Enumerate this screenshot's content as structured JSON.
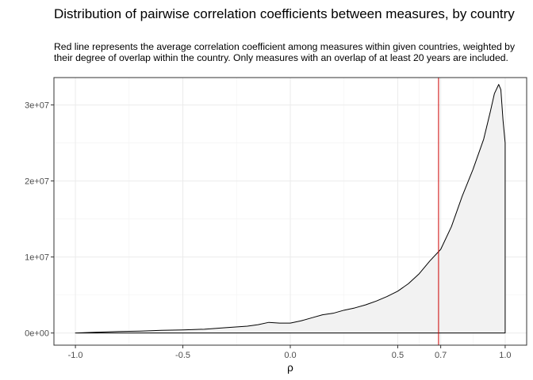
{
  "chart_data": {
    "type": "area",
    "title": "Distribution of pairwise correlation coefficients between measures, by country",
    "subtitle": "Red line represents the average correlation coefficient among measures within given countries, weighted by their degree of overlap within the country. Only measures with an overlap of at least 20 years are included.",
    "xlabel": "ρ",
    "ylabel": "",
    "xlim": [
      -1.1,
      1.1
    ],
    "ylim": [
      -1600000,
      33600000
    ],
    "x_ticks": [
      -1.0,
      -0.5,
      0.0,
      0.5,
      0.7,
      1.0
    ],
    "x_tick_labels": [
      "-1.0",
      "-0.5",
      "0.0",
      "0.5",
      "0.7",
      "1.0"
    ],
    "y_ticks": [
      0,
      10000000,
      20000000,
      30000000
    ],
    "y_tick_labels": [
      "0e+00",
      "1e+07",
      "2e+07",
      "3e+07"
    ],
    "grid": true,
    "reference_line": {
      "x": 0.69,
      "color": "#cc0000"
    },
    "series": [
      {
        "fill": "#f2f2f2",
        "stroke": "#000000",
        "x": [
          -1.0,
          -0.9,
          -0.8,
          -0.7,
          -0.6,
          -0.5,
          -0.4,
          -0.3,
          -0.2,
          -0.15,
          -0.1,
          -0.05,
          0.0,
          0.05,
          0.1,
          0.15,
          0.2,
          0.25,
          0.3,
          0.35,
          0.4,
          0.45,
          0.5,
          0.55,
          0.6,
          0.65,
          0.7,
          0.75,
          0.8,
          0.85,
          0.9,
          0.93,
          0.95,
          0.97,
          0.98,
          0.99,
          1.0
        ],
        "y": [
          0,
          100000,
          200000,
          250000,
          350000,
          400000,
          500000,
          700000,
          900000,
          1100000,
          1400000,
          1300000,
          1300000,
          1600000,
          2000000,
          2400000,
          2600000,
          3000000,
          3300000,
          3700000,
          4200000,
          4800000,
          5500000,
          6500000,
          7800000,
          9500000,
          11000000,
          14000000,
          18000000,
          21500000,
          25500000,
          29000000,
          31500000,
          32700000,
          32000000,
          28000000,
          25000000
        ]
      }
    ]
  }
}
